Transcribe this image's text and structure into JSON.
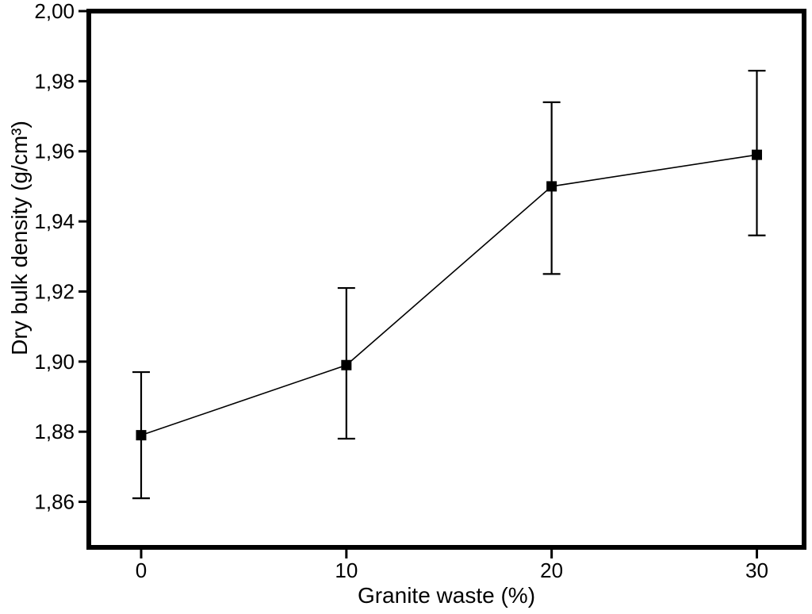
{
  "figure": {
    "background": "#ffffff",
    "frame_color": "#000000"
  },
  "chart_data": {
    "type": "line",
    "title": "",
    "xlabel": "Granite waste (%)",
    "ylabel": "Dry bulk density (g/cm³)",
    "x": [
      0,
      10,
      20,
      30
    ],
    "y": [
      1.879,
      1.899,
      1.95,
      1.959
    ],
    "y_err_low": [
      1.861,
      1.878,
      1.925,
      1.936
    ],
    "y_err_high": [
      1.897,
      1.921,
      1.974,
      1.983
    ],
    "xtick_values": [
      0,
      10,
      20,
      30
    ],
    "xtick_labels": [
      "0",
      "10",
      "20",
      "30"
    ],
    "ytick_values": [
      1.86,
      1.88,
      1.9,
      1.92,
      1.94,
      1.96,
      1.98,
      2.0
    ],
    "ytick_labels": [
      "1,86",
      "1,88",
      "1,90",
      "1,92",
      "1,94",
      "1,96",
      "1,98",
      "2,00"
    ],
    "xlim": [
      -2.55,
      32.3
    ],
    "ylim": [
      1.847,
      2.0
    ],
    "grid": false,
    "legend": "none",
    "marker": "filled-square",
    "line_color": "#000000",
    "marker_color": "#000000",
    "error_bars": true,
    "decimal_separator": ","
  }
}
